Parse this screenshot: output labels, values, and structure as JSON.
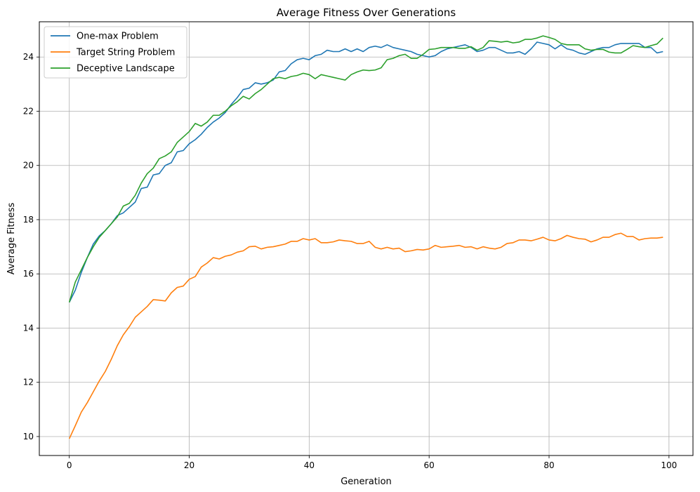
{
  "chart_data": {
    "type": "line",
    "title": "Average Fitness Over Generations",
    "xlabel": "Generation",
    "ylabel": "Average Fitness",
    "xlim": [
      -5,
      104
    ],
    "ylim": [
      9.3,
      25.3
    ],
    "xticks": [
      0,
      20,
      40,
      60,
      80,
      100
    ],
    "yticks": [
      10,
      12,
      14,
      16,
      18,
      20,
      22,
      24
    ],
    "grid": true,
    "legend_position": "top-left",
    "series": [
      {
        "name": "One-max Problem",
        "color": "#1f77b4",
        "values": [
          14.95,
          15.4,
          16.05,
          16.6,
          17.1,
          17.4,
          17.6,
          17.85,
          18.15,
          18.25,
          18.45,
          18.65,
          19.15,
          19.2,
          19.65,
          19.7,
          20.0,
          20.1,
          20.5,
          20.55,
          20.8,
          20.95,
          21.15,
          21.4,
          21.6,
          21.75,
          21.95,
          22.25,
          22.5,
          22.8,
          22.85,
          23.05,
          23.0,
          23.05,
          23.15,
          23.45,
          23.5,
          23.75,
          23.9,
          23.95,
          23.9,
          24.05,
          24.1,
          24.25,
          24.2,
          24.2,
          24.3,
          24.2,
          24.3,
          24.2,
          24.35,
          24.4,
          24.35,
          24.45,
          24.35,
          24.3,
          24.25,
          24.2,
          24.1,
          24.05,
          24.0,
          24.05,
          24.2,
          24.3,
          24.35,
          24.4,
          24.45,
          24.35,
          24.2,
          24.25,
          24.35,
          24.35,
          24.25,
          24.15,
          24.15,
          24.2,
          24.1,
          24.3,
          24.55,
          24.5,
          24.45,
          24.3,
          24.45,
          24.3,
          24.25,
          24.15,
          24.1,
          24.2,
          24.3,
          24.35,
          24.35,
          24.45,
          24.5,
          24.5,
          24.5,
          24.5,
          24.35,
          24.35,
          24.15,
          24.2
        ]
      },
      {
        "name": "Target String Problem",
        "color": "#ff7f0e",
        "values": [
          9.92,
          10.4,
          10.9,
          11.25,
          11.65,
          12.05,
          12.4,
          12.85,
          13.35,
          13.75,
          14.05,
          14.4,
          14.6,
          14.8,
          15.05,
          15.03,
          15.0,
          15.3,
          15.5,
          15.55,
          15.8,
          15.9,
          16.25,
          16.4,
          16.6,
          16.55,
          16.65,
          16.7,
          16.8,
          16.85,
          17.0,
          17.02,
          16.92,
          16.98,
          17.0,
          17.05,
          17.1,
          17.2,
          17.2,
          17.3,
          17.25,
          17.3,
          17.15,
          17.15,
          17.18,
          17.25,
          17.22,
          17.2,
          17.12,
          17.12,
          17.2,
          16.98,
          16.92,
          16.98,
          16.92,
          16.95,
          16.82,
          16.85,
          16.9,
          16.88,
          16.92,
          17.05,
          16.98,
          17.0,
          17.02,
          17.05,
          16.98,
          17.0,
          16.92,
          17.0,
          16.95,
          16.92,
          16.98,
          17.12,
          17.15,
          17.25,
          17.25,
          17.22,
          17.28,
          17.35,
          17.25,
          17.22,
          17.3,
          17.42,
          17.35,
          17.3,
          17.28,
          17.18,
          17.25,
          17.35,
          17.35,
          17.45,
          17.5,
          17.38,
          17.38,
          17.25,
          17.3,
          17.32,
          17.32,
          17.35
        ]
      },
      {
        "name": "Deceptive Landscape",
        "color": "#2ca02c",
        "values": [
          14.95,
          15.7,
          16.15,
          16.6,
          17.0,
          17.35,
          17.6,
          17.85,
          18.1,
          18.5,
          18.6,
          18.9,
          19.35,
          19.7,
          19.9,
          20.25,
          20.35,
          20.5,
          20.85,
          21.05,
          21.25,
          21.55,
          21.45,
          21.6,
          21.85,
          21.85,
          22.0,
          22.2,
          22.35,
          22.55,
          22.45,
          22.65,
          22.8,
          23.0,
          23.2,
          23.25,
          23.2,
          23.28,
          23.32,
          23.4,
          23.35,
          23.2,
          23.35,
          23.3,
          23.25,
          23.2,
          23.15,
          23.35,
          23.45,
          23.52,
          23.5,
          23.52,
          23.6,
          23.9,
          23.95,
          24.05,
          24.1,
          23.95,
          23.95,
          24.1,
          24.28,
          24.3,
          24.35,
          24.35,
          24.35,
          24.32,
          24.32,
          24.38,
          24.25,
          24.35,
          24.6,
          24.58,
          24.55,
          24.58,
          24.52,
          24.55,
          24.65,
          24.65,
          24.7,
          24.78,
          24.72,
          24.65,
          24.5,
          24.45,
          24.45,
          24.45,
          24.3,
          24.25,
          24.28,
          24.28,
          24.18,
          24.15,
          24.15,
          24.28,
          24.42,
          24.38,
          24.35,
          24.42,
          24.48,
          24.7
        ]
      }
    ]
  }
}
